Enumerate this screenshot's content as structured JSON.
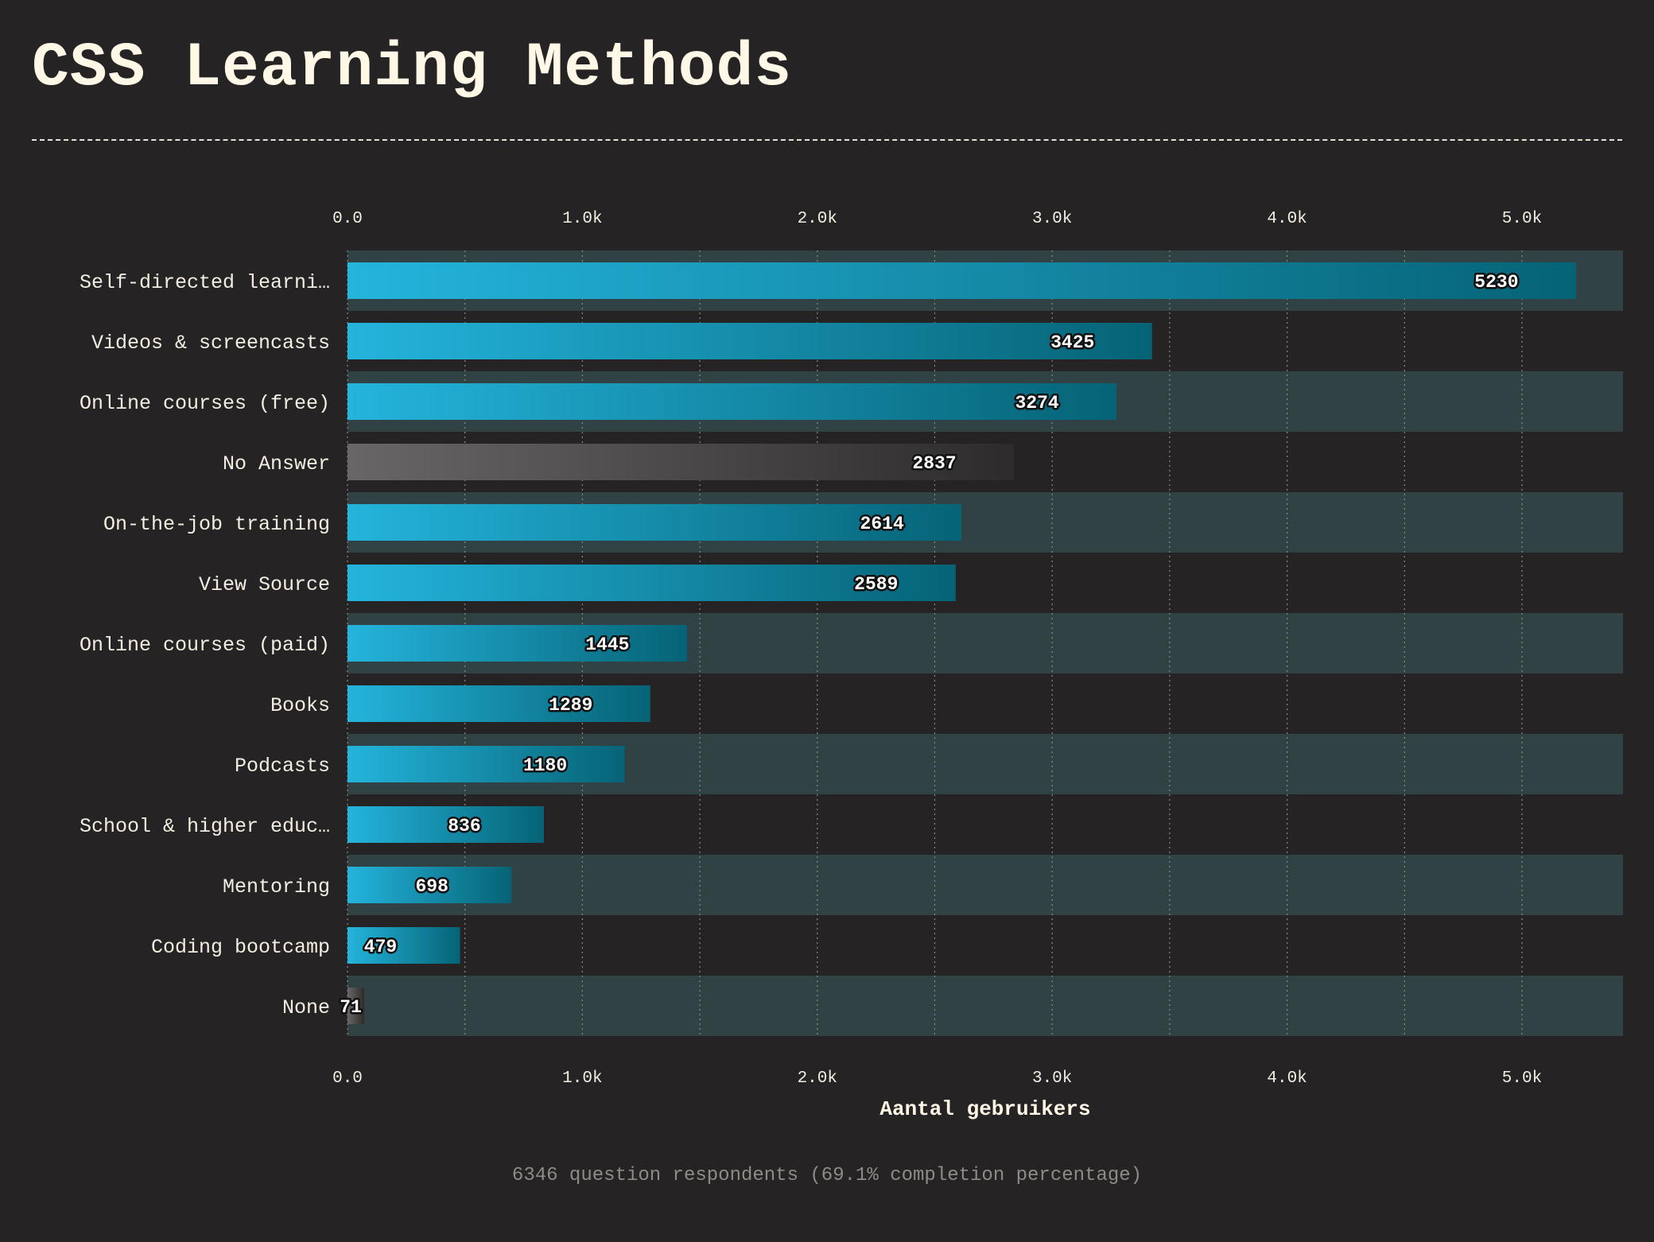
{
  "title": "CSS Learning Methods",
  "footnote": "6346 question respondents (69.1% completion percentage)",
  "colors": {
    "background": "#262324",
    "bar_start": "#24b4dc",
    "bar_end": "#066376",
    "gray_start": "#686666",
    "gray_end": "#2e2b2c",
    "row_band": "#304244",
    "grid": "#8a8a8a"
  },
  "chart_data": {
    "type": "bar",
    "orientation": "horizontal",
    "categories": [
      "Self-directed learni…",
      "Videos & screencasts",
      "Online courses (free)",
      "No Answer",
      "On-the-job training",
      "View Source",
      "Online courses (paid)",
      "Books",
      "Podcasts",
      "School & higher educ…",
      "Mentoring",
      "Coding bootcamp",
      "None"
    ],
    "values": [
      5230,
      3425,
      3274,
      2837,
      2614,
      2589,
      1445,
      1289,
      1180,
      836,
      698,
      479,
      71
    ],
    "value_labels": [
      "5230",
      "3425",
      "3274",
      "2837",
      "2614",
      "2589",
      "1445",
      "1289",
      "1180",
      "836",
      "698",
      "479",
      "71"
    ],
    "gray_categories": [
      "No Answer",
      "None"
    ],
    "xlabel": "Aantal gebruikers",
    "ylabel": "",
    "xlim": [
      0,
      5430
    ],
    "xticks": [
      0,
      1000,
      2000,
      3000,
      4000,
      5000
    ],
    "xtick_labels": [
      "0.0",
      "1.0k",
      "2.0k",
      "3.0k",
      "4.0k",
      "5.0k"
    ],
    "x_axis_top_and_bottom": true,
    "grid": true
  }
}
